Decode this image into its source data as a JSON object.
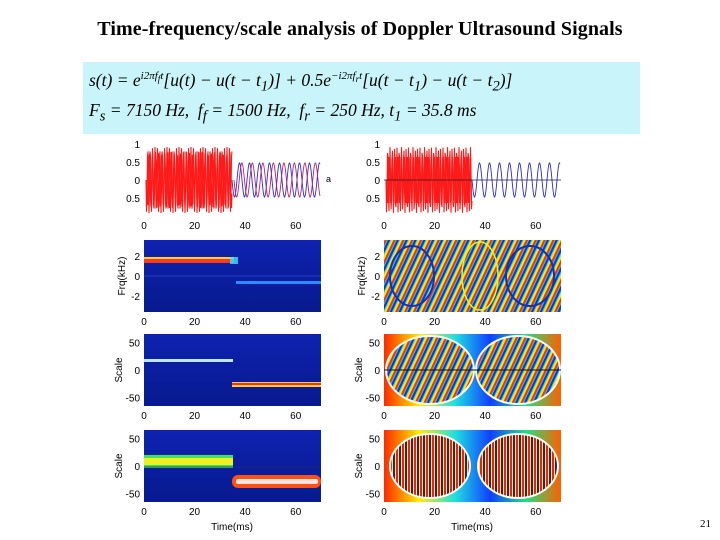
{
  "slide": {
    "title": "Time-frequency/scale analysis of Doppler Ultrasound Signals",
    "page_number": "21"
  },
  "formula": {
    "line1": "s(t) = e^{i2πf_f t}[u(t) − u(t − t₁)] + 0.5e^{−i2πf_r t}[u(t − t₁) − u(t − t₂)]",
    "line2": "F_s = 7150 Hz,  f_f = 1500 Hz,  f_r = 250 Hz, t₁ = 35.8 ms"
  },
  "figure": {
    "row_labels": {
      "signal": "",
      "frequency": "Frq(kHz)",
      "scale1": "Scale",
      "scale2": "Scale"
    },
    "panel_a_label": "a",
    "time_ticks": [
      "0",
      "20",
      "40",
      "60"
    ],
    "signal_ticks": [
      "1",
      "0.5",
      "0",
      "0.5"
    ],
    "freq_ticks": [
      "2",
      "0",
      "-2"
    ],
    "scale_ticks": [
      "50",
      "0",
      "-50"
    ],
    "xlabel_left": "Time(ms)",
    "xlabel_right": "Time(ms)",
    "colors": {
      "forward_red": "#ff1a1a",
      "reverse_blue": "#2a2ad8",
      "tf_background": "#0a1ea8"
    }
  },
  "chart_data": [
    {
      "type": "line",
      "title": "",
      "panel": "left-1",
      "xlabel": "",
      "ylabel": "",
      "x_range": [
        0,
        70
      ],
      "ylim": [
        -1,
        1
      ],
      "series": [
        {
          "name": "",
          "values": []
        }
      ]
    }
  ]
}
